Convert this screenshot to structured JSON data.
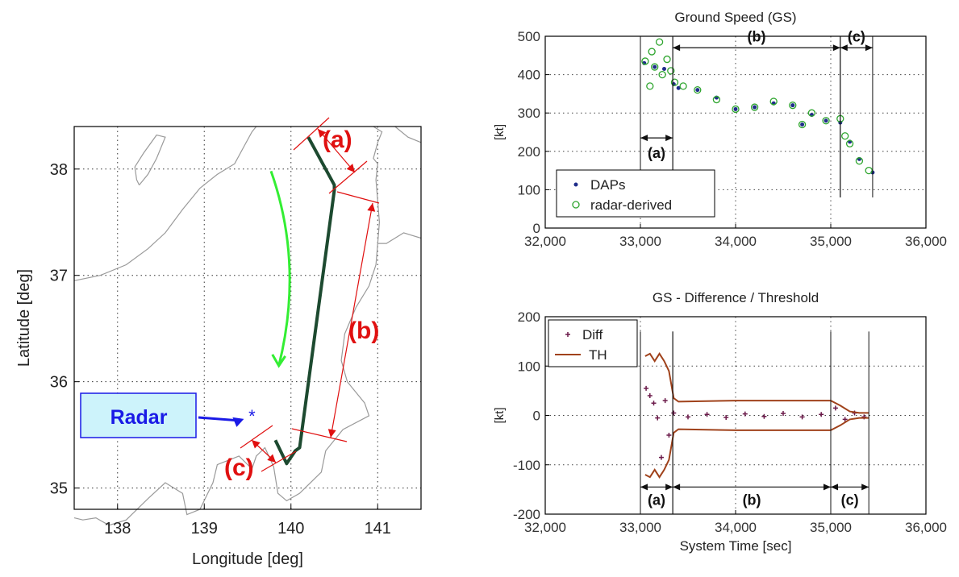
{
  "colors": {
    "dap": "#1f2d8a",
    "radar": "#2ea52e",
    "diff": "#6b1a4a",
    "th": "#a0421b",
    "track": "#1d4a30",
    "arrow_green": "#33ee33",
    "annotation_red": "#e01010",
    "radar_blue": "#1a1ae6",
    "radar_box": "#cdf3fb",
    "coast": "#9a9a9a"
  },
  "map": {
    "xlabel": "Longitude [deg]",
    "ylabel": "Latitude [deg]",
    "xticks": [
      "138",
      "139",
      "140",
      "141"
    ],
    "yticks": [
      "38",
      "37",
      "36",
      "35"
    ],
    "radar_label": "Radar",
    "segment_labels": [
      "(a)",
      "(b)",
      "(c)"
    ],
    "xlim": [
      137.5,
      141.5
    ],
    "ylim": [
      34.8,
      38.4
    ],
    "radar_position": {
      "lon": 139.55,
      "lat": 35.68
    },
    "track": [
      {
        "lon": 140.2,
        "lat": 38.3
      },
      {
        "lon": 140.5,
        "lat": 37.85
      },
      {
        "lon": 140.5,
        "lat": 37.8
      },
      {
        "lon": 140.1,
        "lat": 35.38
      },
      {
        "lon": 140.05,
        "lat": 35.35
      },
      {
        "lon": 139.95,
        "lat": 35.23
      },
      {
        "lon": 139.82,
        "lat": 35.45
      }
    ]
  },
  "chart_data": [
    {
      "type": "scatter",
      "title": "Ground  Speed (GS)",
      "xlabel": "",
      "ylabel": "[kt]",
      "xlim": [
        32000,
        36000
      ],
      "ylim": [
        0,
        500
      ],
      "xticks": [
        "32,000",
        "33,000",
        "34,000",
        "35,000",
        "36,000"
      ],
      "yticks": [
        "0",
        "100",
        "200",
        "300",
        "400",
        "500"
      ],
      "grid": true,
      "legend_position": "bottom-left",
      "series": [
        {
          "name": "DAPs",
          "marker": "dot",
          "x": [
            33040,
            33150,
            33250,
            33350,
            33400,
            33600,
            33800,
            34000,
            34200,
            34400,
            34600,
            34700,
            34800,
            34950,
            35100,
            35200,
            35300,
            35440
          ],
          "y": [
            430,
            420,
            415,
            375,
            365,
            360,
            340,
            310,
            315,
            325,
            320,
            270,
            295,
            280,
            275,
            225,
            180,
            145
          ]
        },
        {
          "name": "radar-derived",
          "marker": "open-circle",
          "x": [
            33050,
            33100,
            33120,
            33150,
            33200,
            33230,
            33280,
            33320,
            33360,
            33450,
            33600,
            33800,
            34000,
            34200,
            34400,
            34600,
            34700,
            34800,
            34950,
            35100,
            35150,
            35200,
            35300,
            35400
          ],
          "y": [
            435,
            370,
            460,
            420,
            485,
            400,
            440,
            410,
            380,
            370,
            360,
            335,
            310,
            315,
            330,
            320,
            270,
            300,
            280,
            285,
            240,
            220,
            175,
            150
          ]
        }
      ],
      "annotations": [
        {
          "label": "(a)",
          "from": 33000,
          "to": 33340
        },
        {
          "label": "(b)",
          "from": 33340,
          "to": 35100
        },
        {
          "label": "(c)",
          "from": 35100,
          "to": 35440
        }
      ]
    },
    {
      "type": "scatter",
      "title": "GS - Difference / Threshold",
      "xlabel": "System Time [sec]",
      "ylabel": "[kt]",
      "xlim": [
        32000,
        36000
      ],
      "ylim": [
        -200,
        200
      ],
      "xticks": [
        "32,000",
        "33,000",
        "34,000",
        "35,000",
        "36,000"
      ],
      "yticks": [
        "200",
        "100",
        "0",
        "-100",
        "-200"
      ],
      "grid": true,
      "legend_position": "top-left",
      "series": [
        {
          "name": "Diff",
          "marker": "plus",
          "x": [
            33060,
            33100,
            33140,
            33180,
            33220,
            33260,
            33300,
            33350,
            33500,
            33700,
            33900,
            34100,
            34300,
            34500,
            34700,
            34900,
            35050,
            35150,
            35250,
            35350
          ],
          "y": [
            55,
            40,
            25,
            -5,
            -85,
            30,
            -40,
            5,
            -3,
            2,
            -4,
            3,
            -2,
            4,
            -3,
            2,
            15,
            -8,
            5,
            -3
          ]
        },
        {
          "name": "TH",
          "marker": "line",
          "x": [
            33050,
            33100,
            33150,
            33200,
            33250,
            33300,
            33350,
            33400,
            34000,
            35000,
            35100,
            35200,
            35300,
            35400
          ],
          "y": [
            120,
            125,
            110,
            125,
            110,
            90,
            35,
            28,
            30,
            30,
            20,
            8,
            5,
            5
          ],
          "mirrored": true
        }
      ],
      "annotations": [
        {
          "label": "(a)",
          "from": 33000,
          "to": 33340
        },
        {
          "label": "(b)",
          "from": 33340,
          "to": 35000
        },
        {
          "label": "(c)",
          "from": 35000,
          "to": 35400
        }
      ]
    }
  ]
}
